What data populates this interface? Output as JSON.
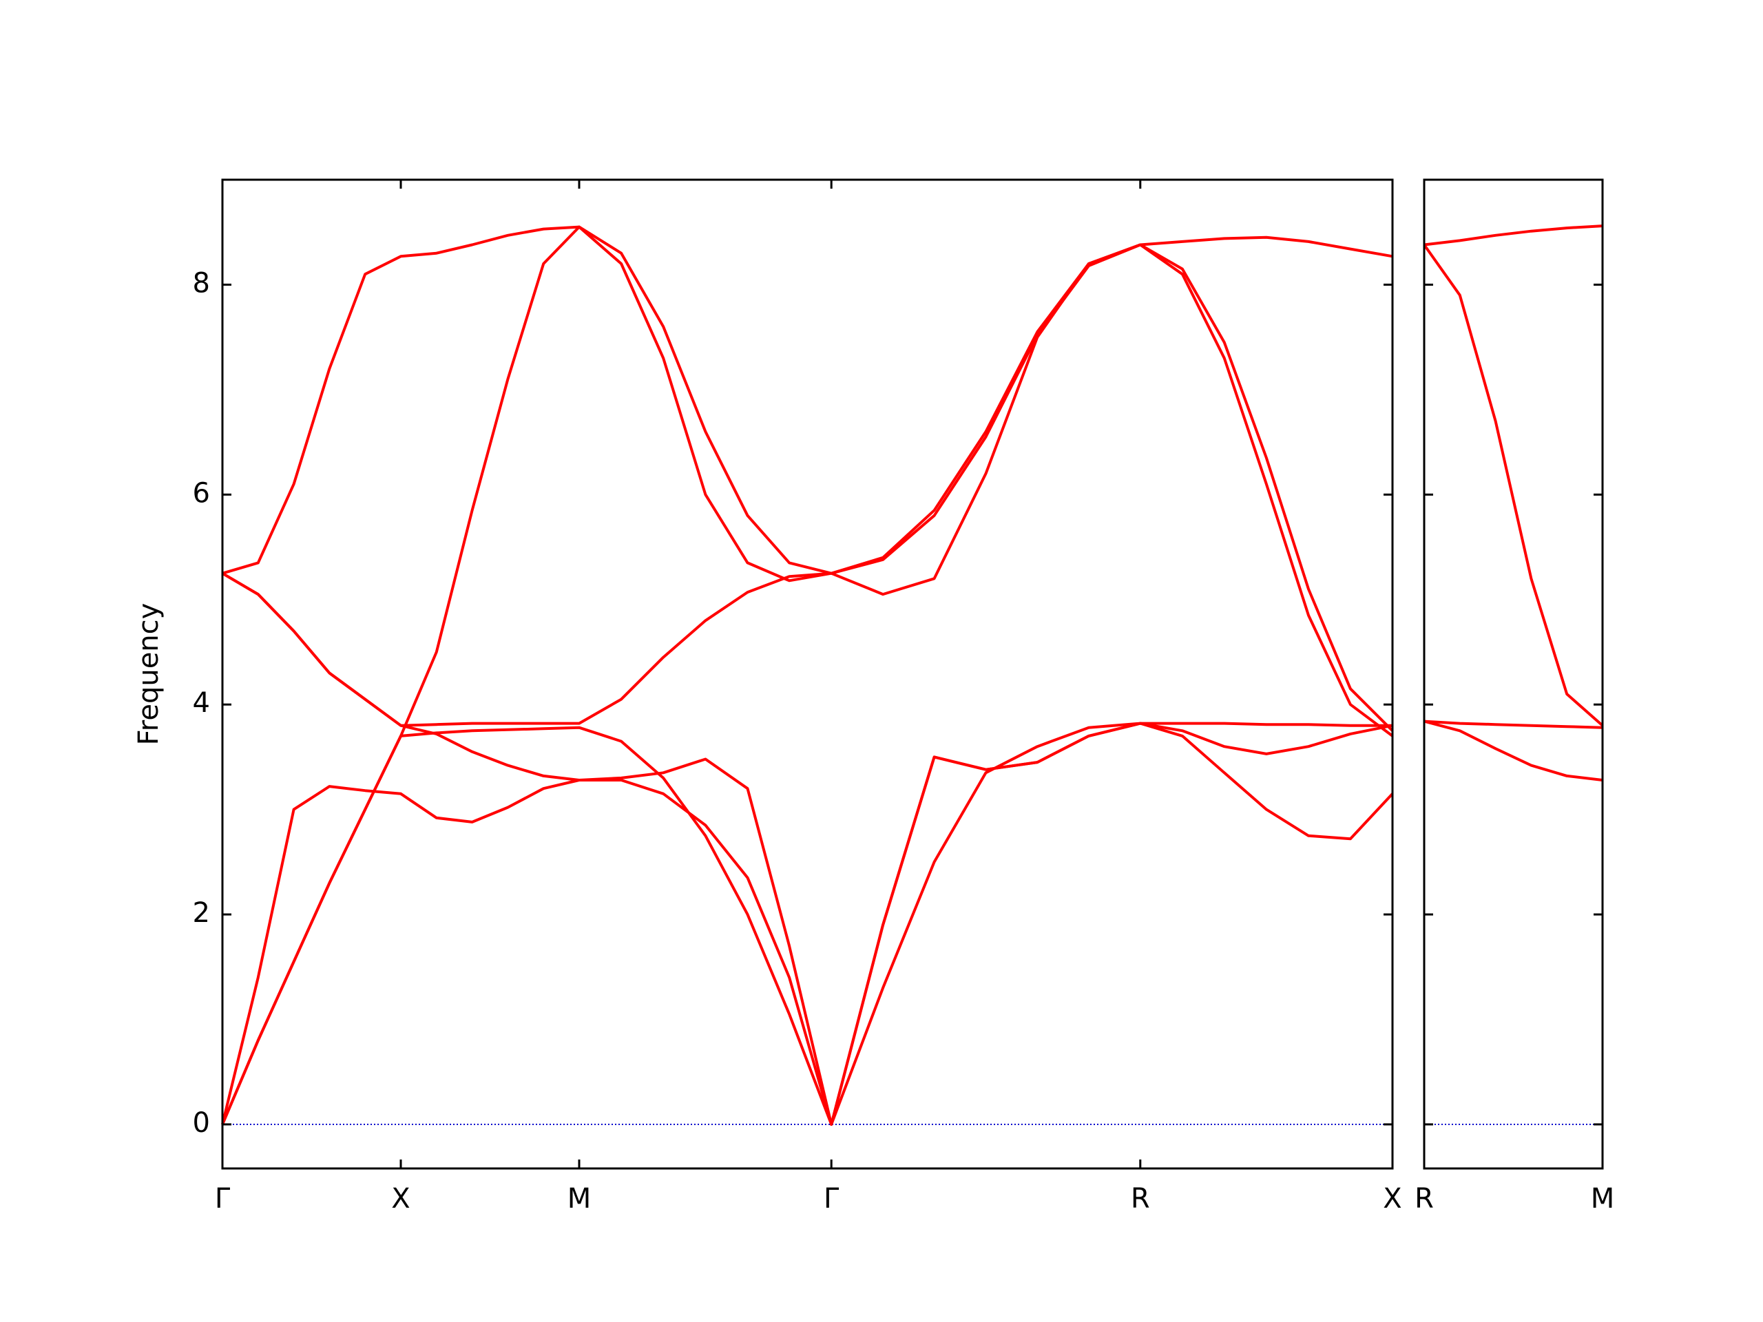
{
  "chart_data": [
    {
      "type": "line",
      "ylabel": "Frequency",
      "x": [
        0,
        0.2,
        0.4,
        0.6,
        0.8,
        1.0,
        1.2,
        1.4,
        1.6,
        1.8,
        2.0,
        2.236,
        2.472,
        2.708,
        2.944,
        3.178,
        3.414,
        3.703,
        3.991,
        4.28,
        4.569,
        4.857,
        5.146,
        5.382,
        5.617,
        5.853,
        6.089,
        6.324,
        6.56
      ],
      "series": [
        {
          "color": "#ff0000",
          "values": [
            0,
            1.4,
            3.0,
            3.22,
            3.18,
            3.15,
            2.92,
            2.88,
            3.02,
            3.2,
            3.28,
            3.28,
            3.15,
            2.85,
            2.35,
            1.4,
            0,
            1.3,
            2.5,
            3.35,
            3.6,
            3.78,
            3.82,
            3.7,
            3.35,
            3.0,
            2.75,
            2.72,
            3.15
          ]
        },
        {
          "color": "#ff0000",
          "values": [
            0,
            0.8,
            1.55,
            2.3,
            3.0,
            3.7,
            4.5,
            5.85,
            7.1,
            8.2,
            8.55,
            8.2,
            7.3,
            6.0,
            5.35,
            5.18,
            5.25,
            5.05,
            5.2,
            6.2,
            7.5,
            8.2,
            8.38,
            8.1,
            7.3,
            6.1,
            4.85,
            4.0,
            3.7
          ]
        },
        {
          "color": "#ff0000",
          "values": [
            0,
            0.8,
            1.55,
            2.3,
            3.0,
            3.7,
            3.73,
            3.75,
            3.76,
            3.77,
            3.78,
            3.65,
            3.3,
            2.75,
            2.0,
            1.05,
            0,
            1.9,
            3.5,
            3.38,
            3.45,
            3.7,
            3.82,
            3.75,
            3.6,
            3.53,
            3.6,
            3.72,
            3.8
          ]
        },
        {
          "color": "#ff0000",
          "values": [
            5.25,
            5.05,
            4.7,
            4.3,
            4.05,
            3.8,
            3.72,
            3.55,
            3.42,
            3.32,
            3.28,
            3.3,
            3.35,
            3.48,
            3.2,
            1.7,
            0,
            1.9,
            3.5,
            3.38,
            3.45,
            3.7,
            3.82,
            3.82,
            3.82,
            3.81,
            3.81,
            3.8,
            3.8
          ]
        },
        {
          "color": "#ff0000",
          "values": [
            5.25,
            5.05,
            4.7,
            4.3,
            4.05,
            3.8,
            3.81,
            3.82,
            3.82,
            3.82,
            3.82,
            4.05,
            4.45,
            4.8,
            5.07,
            5.22,
            5.25,
            5.38,
            5.8,
            6.55,
            7.52,
            8.18,
            8.38,
            8.15,
            7.45,
            6.35,
            5.1,
            4.15,
            3.75
          ]
        },
        {
          "color": "#ff0000",
          "values": [
            5.25,
            5.35,
            6.1,
            7.2,
            8.1,
            8.27,
            8.3,
            8.38,
            8.47,
            8.53,
            8.55,
            8.3,
            7.6,
            6.6,
            5.8,
            5.35,
            5.25,
            5.4,
            5.85,
            6.6,
            7.55,
            8.2,
            8.38,
            8.41,
            8.44,
            8.45,
            8.41,
            8.34,
            8.27
          ]
        }
      ],
      "xlim": [
        0,
        6.56
      ],
      "ylim": [
        -0.42,
        9.0
      ],
      "xticks": [
        {
          "value": 0,
          "label": "Γ"
        },
        {
          "value": 1,
          "label": "X"
        },
        {
          "value": 2,
          "label": "M"
        },
        {
          "value": 3.414,
          "label": "Γ"
        },
        {
          "value": 5.146,
          "label": "R"
        },
        {
          "value": 6.56,
          "label": "X"
        }
      ],
      "yticks": [
        0,
        2,
        4,
        6,
        8
      ],
      "show_ytick_labels": true,
      "hline": 0,
      "hline_color": "#0000cc"
    },
    {
      "type": "line",
      "x": [
        0,
        0.2,
        0.4,
        0.6,
        0.8,
        1.0
      ],
      "series": [
        {
          "color": "#ff0000",
          "values": [
            8.38,
            8.42,
            8.47,
            8.51,
            8.54,
            8.56
          ]
        },
        {
          "color": "#ff0000",
          "values": [
            8.38,
            7.9,
            6.7,
            5.2,
            4.1,
            3.8
          ]
        },
        {
          "color": "#ff0000",
          "values": [
            3.84,
            3.82,
            3.81,
            3.8,
            3.79,
            3.78
          ]
        },
        {
          "color": "#ff0000",
          "values": [
            3.84,
            3.75,
            3.58,
            3.42,
            3.32,
            3.28
          ]
        }
      ],
      "xlim": [
        0,
        1
      ],
      "ylim": [
        -0.42,
        9.0
      ],
      "xticks": [
        {
          "value": 0,
          "label": "R"
        },
        {
          "value": 1,
          "label": "M"
        }
      ],
      "yticks": [
        0,
        2,
        4,
        6,
        8
      ],
      "show_ytick_labels": false,
      "hline": 0,
      "hline_color": "#0000cc"
    }
  ]
}
